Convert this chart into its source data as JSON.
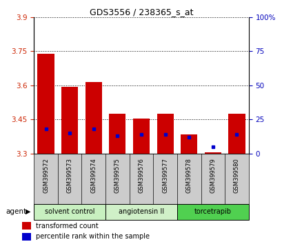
{
  "title": "GDS3556 / 238365_s_at",
  "samples": [
    "GSM399572",
    "GSM399573",
    "GSM399574",
    "GSM399575",
    "GSM399576",
    "GSM399577",
    "GSM399578",
    "GSM399579",
    "GSM399580"
  ],
  "red_values": [
    3.74,
    3.595,
    3.615,
    3.475,
    3.455,
    3.475,
    3.385,
    3.305,
    3.475
  ],
  "blue_percentiles": [
    18,
    15,
    18,
    13,
    14,
    14,
    12,
    5,
    14
  ],
  "y_min": 3.3,
  "y_max": 3.9,
  "y_ticks": [
    3.3,
    3.45,
    3.6,
    3.75,
    3.9
  ],
  "y_right_ticks": [
    0,
    25,
    50,
    75,
    100
  ],
  "y_right_labels": [
    "0",
    "25",
    "50",
    "75",
    "100%"
  ],
  "agent_groups": [
    {
      "label": "solvent control",
      "start": 0,
      "end": 2,
      "color": "#c8f0c0"
    },
    {
      "label": "angiotensin II",
      "start": 3,
      "end": 5,
      "color": "#d0f0c8"
    },
    {
      "label": "torcetrapib",
      "start": 6,
      "end": 8,
      "color": "#50d050"
    }
  ],
  "bar_color": "#cc0000",
  "dot_color": "#0000cc",
  "bar_width": 0.7,
  "baseline": 3.3,
  "agent_label": "agent",
  "legend_red": "transformed count",
  "legend_blue": "percentile rank within the sample",
  "bg_color": "#ffffff",
  "tick_label_color_left": "#cc2200",
  "tick_label_color_right": "#0000bb",
  "grid_color": "#000000",
  "sample_bg_color": "#cccccc"
}
